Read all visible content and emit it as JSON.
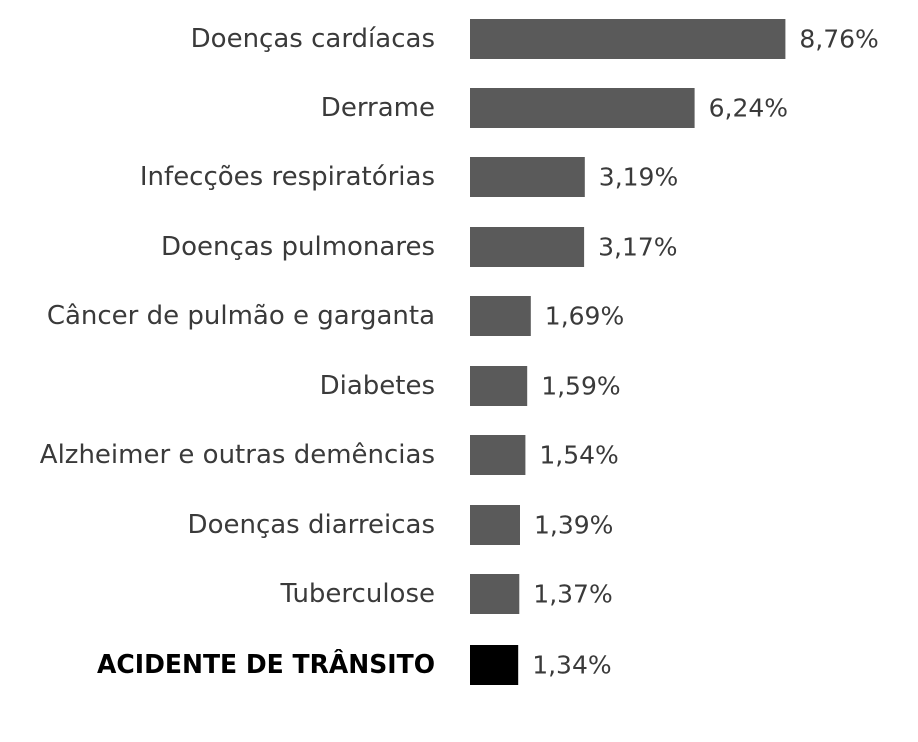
{
  "chart_data": {
    "type": "bar",
    "orientation": "horizontal",
    "categories": [
      "Doenças cardíacas",
      "Derrame",
      "Infecções respiratórias",
      "Doenças pulmonares",
      "Câncer de pulmão e garganta",
      "Diabetes",
      "Alzheimer e outras demências",
      "Doenças diarreicas",
      "Tuberculose",
      "ACIDENTE DE TRÂNSITO"
    ],
    "values": [
      8.76,
      6.24,
      3.19,
      3.17,
      1.69,
      1.59,
      1.54,
      1.39,
      1.37,
      1.34
    ],
    "value_labels": [
      "8,76%",
      "6,24%",
      "3,19%",
      "3,17%",
      "1,69%",
      "1,59%",
      "1,54%",
      "1,39%",
      "1,37%",
      "1,34%"
    ],
    "highlight_index": 9,
    "colors": {
      "bar": "#5a5a5a",
      "highlight_bar": "#000000",
      "label_text": "#3a3a3a",
      "highlight_text": "#000000",
      "value_text": "#3a3a3a"
    },
    "legend": "none",
    "grid": false
  }
}
